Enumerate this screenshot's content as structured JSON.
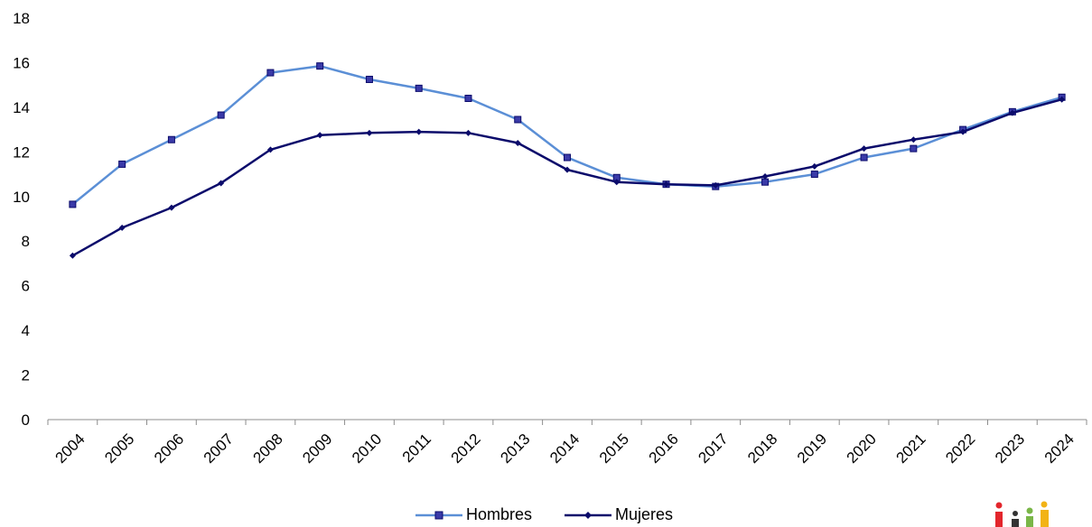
{
  "chart_data": {
    "type": "line",
    "categories": [
      "2004",
      "2005",
      "2006",
      "2007",
      "2008",
      "2009",
      "2010",
      "2011",
      "2012",
      "2013",
      "2014",
      "2015",
      "2016",
      "2017",
      "2018",
      "2019",
      "2020",
      "2021",
      "2022",
      "2023",
      "2024"
    ],
    "ylim": [
      0,
      18
    ],
    "yticks": [
      0,
      2,
      4,
      6,
      8,
      10,
      12,
      14,
      16,
      18
    ],
    "grid": false,
    "legend_position": "bottom",
    "series": [
      {
        "name": "Hombres",
        "color": "#5b8fd6",
        "marker": "square",
        "values": [
          9.65,
          11.45,
          12.55,
          13.65,
          15.55,
          15.85,
          15.25,
          14.85,
          14.4,
          13.45,
          11.75,
          10.85,
          10.55,
          10.45,
          10.65,
          11.0,
          11.75,
          12.15,
          13.0,
          13.8,
          14.45
        ]
      },
      {
        "name": "Mujeres",
        "color": "#0b0b6b",
        "marker": "diamond",
        "values": [
          7.35,
          8.6,
          9.5,
          10.6,
          12.1,
          12.75,
          12.85,
          12.9,
          12.85,
          12.4,
          11.2,
          10.65,
          10.55,
          10.5,
          10.9,
          11.35,
          12.15,
          12.55,
          12.9,
          13.75,
          14.35
        ]
      }
    ]
  },
  "legend": {
    "hombres_label": "Hombres",
    "mujeres_label": "Mujeres"
  },
  "logo": {
    "colors": [
      "#e3262c",
      "#333333",
      "#7ab648",
      "#f2b316"
    ]
  }
}
